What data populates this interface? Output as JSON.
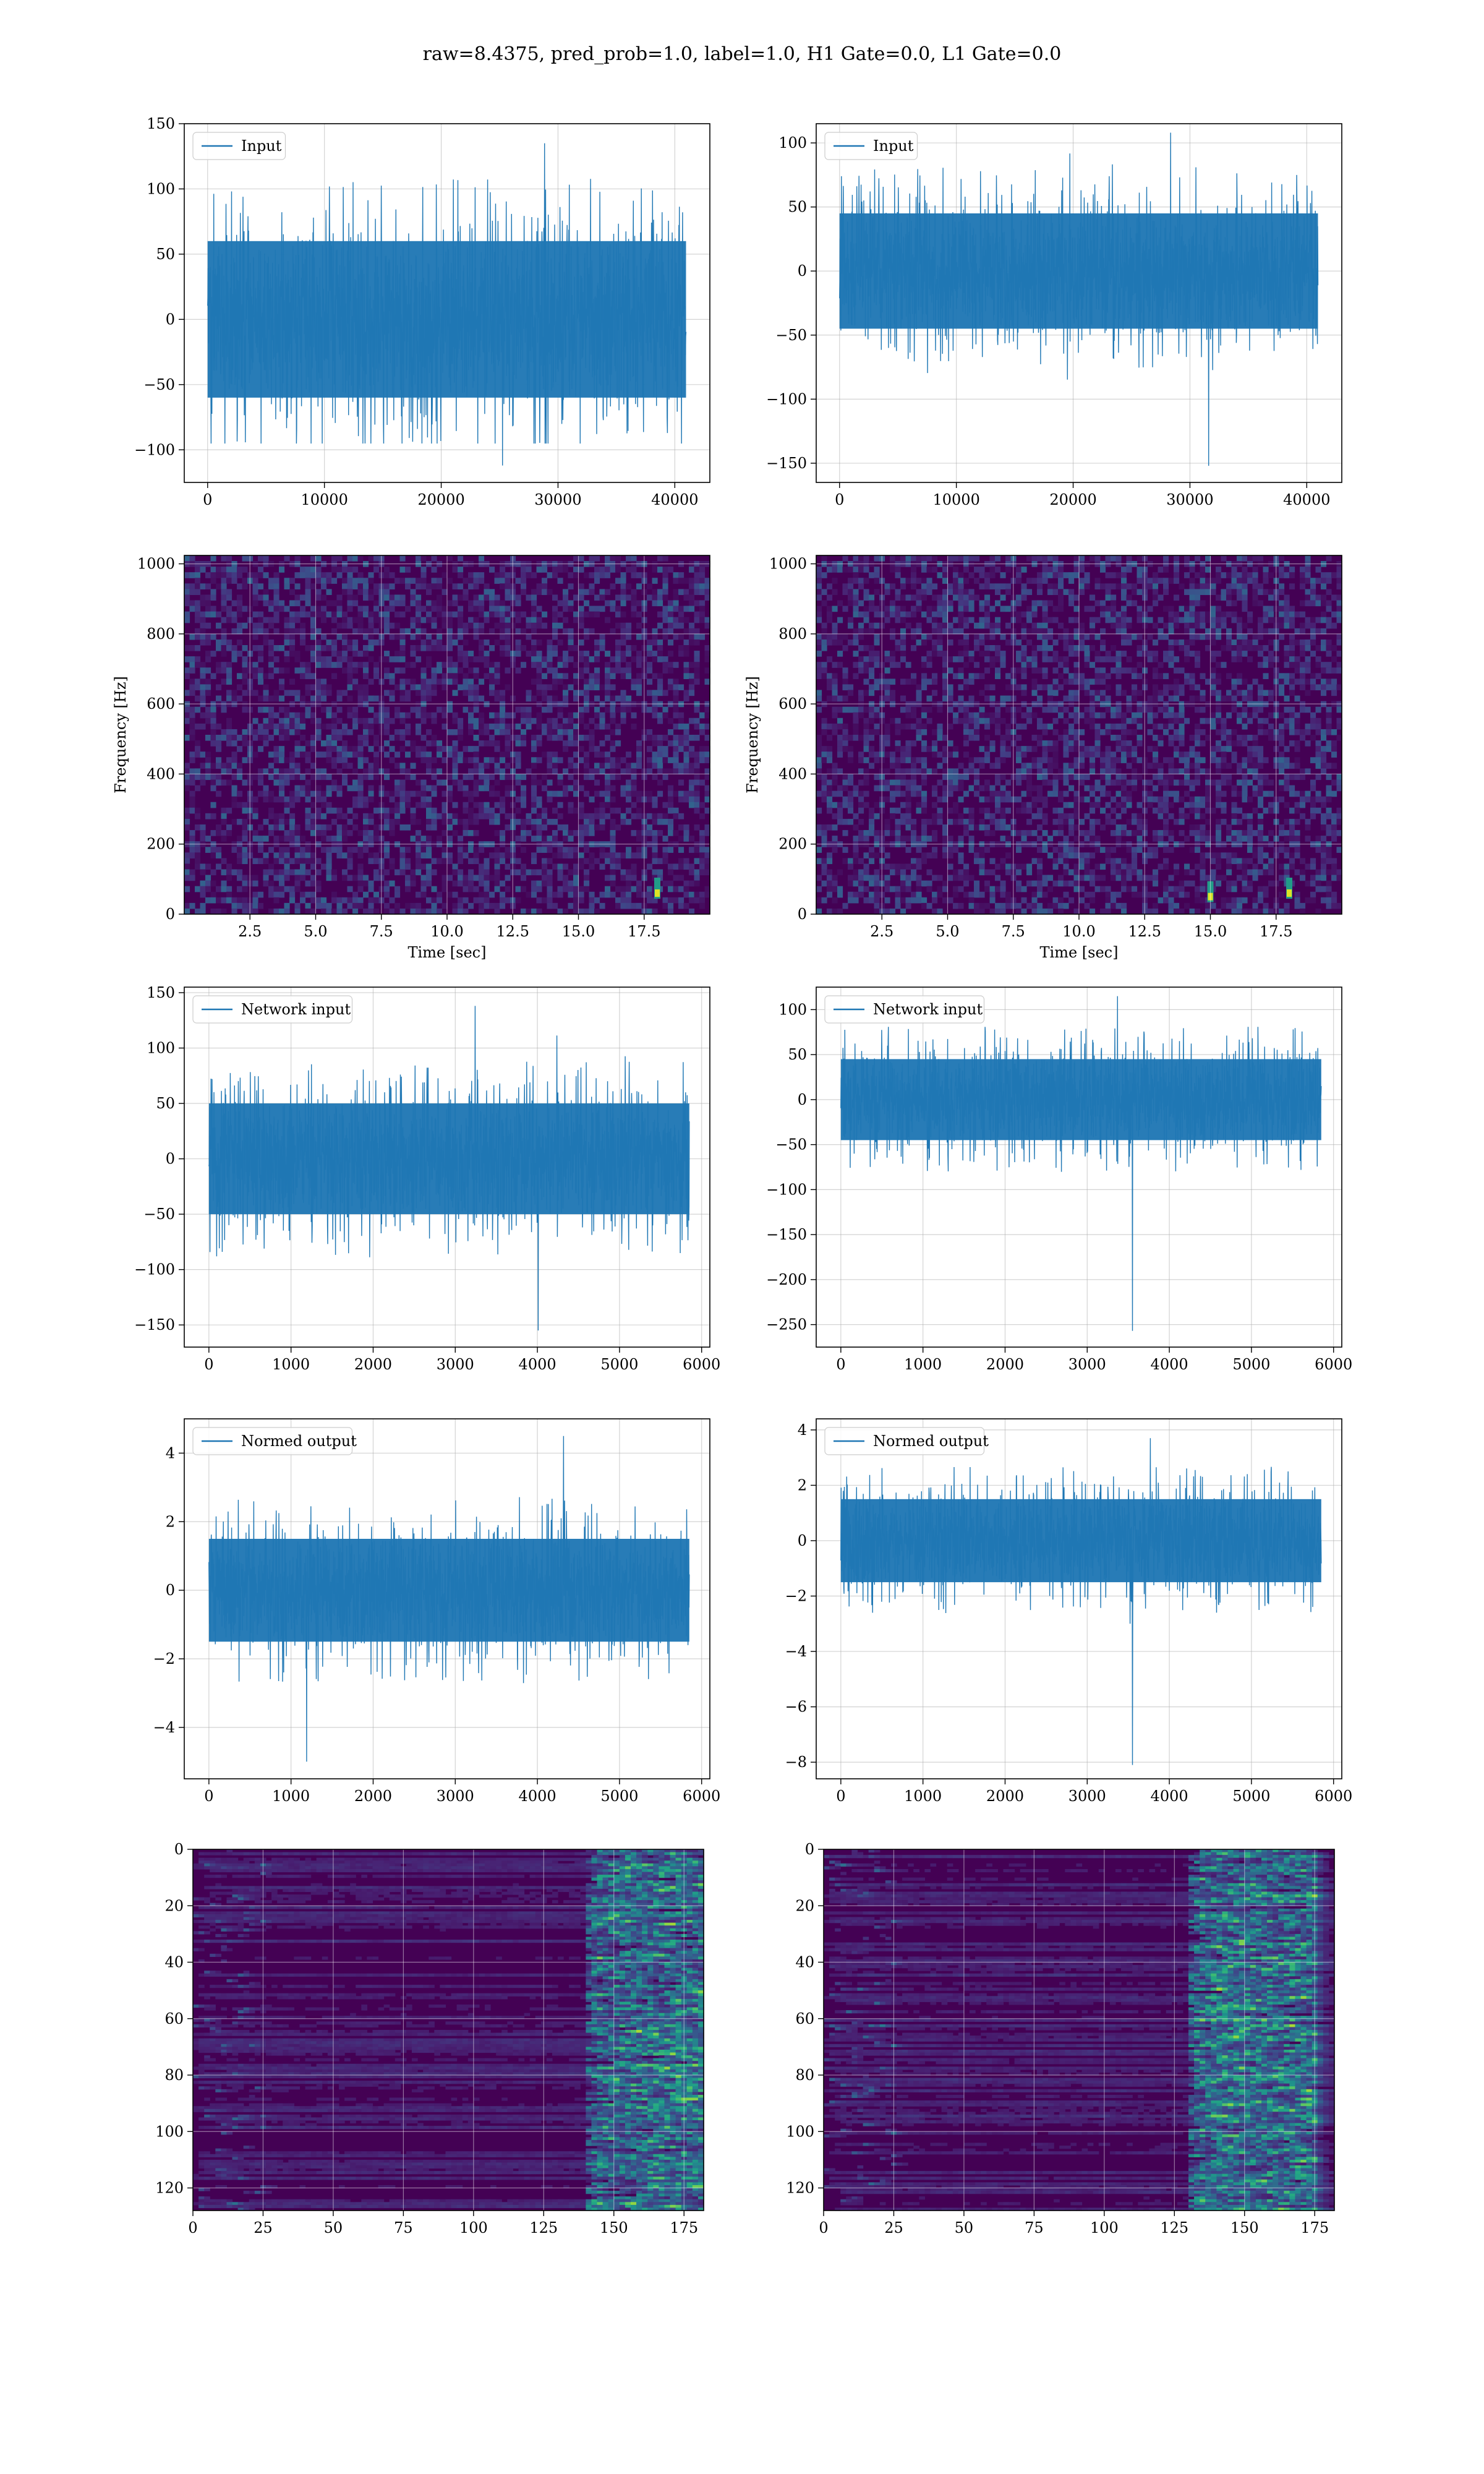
{
  "figure": {
    "title": "raw=8.4375, pred_prob=1.0, label=1.0, H1 Gate=0.0, L1 Gate=0.0"
  },
  "colors": {
    "line": "#1f77b4",
    "grid": "#b0b0b0",
    "viridis_low": "#440154",
    "viridis_high": "#fde725"
  },
  "chart_data": [
    {
      "type": "line",
      "panel": "top-left-input",
      "series_name": "Input",
      "xlim": [
        -2000,
        43000
      ],
      "ylim": [
        -125,
        150
      ],
      "xticks": [
        0,
        10000,
        20000,
        30000,
        40000
      ],
      "yticks": [
        -100,
        -50,
        0,
        50,
        100,
        150
      ],
      "x_range": [
        0,
        40960
      ],
      "core_amplitude": 60,
      "peak_max": 135,
      "peak_min": -112,
      "grid": true,
      "legend_position": "upper-left"
    },
    {
      "type": "line",
      "panel": "top-right-input",
      "series_name": "Input",
      "xlim": [
        -2000,
        43000
      ],
      "ylim": [
        -165,
        115
      ],
      "xticks": [
        0,
        10000,
        20000,
        30000,
        40000
      ],
      "yticks": [
        -150,
        -100,
        -50,
        0,
        50,
        100
      ],
      "x_range": [
        0,
        40960
      ],
      "core_amplitude": 45,
      "peak_max": 108,
      "peak_min": -152,
      "grid": true,
      "legend_position": "upper-left"
    },
    {
      "type": "heatmap",
      "panel": "spectrogram-left",
      "xlim": [
        0,
        20
      ],
      "ylim": [
        0,
        1024
      ],
      "xticks": [
        2.5,
        5.0,
        7.5,
        10.0,
        12.5,
        15.0,
        17.5
      ],
      "yticks": [
        0,
        200,
        400,
        600,
        800,
        1000
      ],
      "xlabel": "Time [sec]",
      "ylabel": "Frequency [Hz]",
      "bright_spots": [
        [
          18.0,
          60
        ]
      ],
      "grid": true
    },
    {
      "type": "heatmap",
      "panel": "spectrogram-right",
      "xlim": [
        0,
        20
      ],
      "ylim": [
        0,
        1024
      ],
      "xticks": [
        2.5,
        5.0,
        7.5,
        10.0,
        12.5,
        15.0,
        17.5
      ],
      "yticks": [
        0,
        200,
        400,
        600,
        800,
        1000
      ],
      "xlabel": "Time [sec]",
      "ylabel": "Frequency [Hz]",
      "bright_spots": [
        [
          15.0,
          50
        ],
        [
          18.0,
          60
        ]
      ],
      "grid": true
    },
    {
      "type": "line",
      "panel": "network-input-left",
      "series_name": "Network input",
      "xlim": [
        -300,
        6100
      ],
      "ylim": [
        -170,
        155
      ],
      "xticks": [
        0,
        1000,
        2000,
        3000,
        4000,
        5000,
        6000
      ],
      "yticks": [
        -150,
        -100,
        -50,
        0,
        50,
        100,
        150
      ],
      "x_range": [
        0,
        5850
      ],
      "core_amplitude": 50,
      "peak_max": 138,
      "peak_min": -155,
      "grid": true,
      "legend_position": "upper-left"
    },
    {
      "type": "line",
      "panel": "network-input-right",
      "series_name": "Network input",
      "xlim": [
        -300,
        6100
      ],
      "ylim": [
        -275,
        125
      ],
      "xticks": [
        0,
        1000,
        2000,
        3000,
        4000,
        5000,
        6000
      ],
      "yticks": [
        -250,
        -200,
        -150,
        -100,
        -50,
        0,
        50,
        100
      ],
      "x_range": [
        0,
        5850
      ],
      "core_amplitude": 45,
      "peak_max": 115,
      "peak_min": -257,
      "spike_x": 3550,
      "grid": true,
      "legend_position": "upper-left"
    },
    {
      "type": "line",
      "panel": "normed-output-left",
      "series_name": "Normed output",
      "xlim": [
        -300,
        6100
      ],
      "ylim": [
        -5.5,
        5.0
      ],
      "xticks": [
        0,
        1000,
        2000,
        3000,
        4000,
        5000,
        6000
      ],
      "yticks": [
        -4,
        -2,
        0,
        2,
        4
      ],
      "x_range": [
        0,
        5850
      ],
      "core_amplitude": 1.5,
      "peak_max": 4.5,
      "peak_min": -5.0,
      "grid": true,
      "legend_position": "upper-left"
    },
    {
      "type": "line",
      "panel": "normed-output-right",
      "series_name": "Normed output",
      "xlim": [
        -300,
        6100
      ],
      "ylim": [
        -8.6,
        4.4
      ],
      "xticks": [
        0,
        1000,
        2000,
        3000,
        4000,
        5000,
        6000
      ],
      "yticks": [
        -8,
        -6,
        -4,
        -2,
        0,
        2,
        4
      ],
      "x_range": [
        0,
        5850
      ],
      "core_amplitude": 1.5,
      "peak_max": 3.7,
      "peak_min": -8.1,
      "spike_x": 3550,
      "grid": true,
      "legend_position": "upper-left"
    },
    {
      "type": "heatmap",
      "panel": "feature-map-left",
      "xlim": [
        0,
        182
      ],
      "ylim": [
        128,
        0
      ],
      "xticks": [
        0,
        25,
        50,
        75,
        100,
        125,
        150,
        175
      ],
      "yticks": [
        0,
        20,
        40,
        60,
        80,
        100,
        120
      ],
      "active_region": [
        140,
        182
      ],
      "grid": true
    },
    {
      "type": "heatmap",
      "panel": "feature-map-right",
      "xlim": [
        0,
        182
      ],
      "ylim": [
        128,
        0
      ],
      "xticks": [
        0,
        25,
        50,
        75,
        100,
        125,
        150,
        175
      ],
      "yticks": [
        0,
        20,
        40,
        60,
        80,
        100,
        120
      ],
      "active_region": [
        130,
        175
      ],
      "grid": true
    }
  ]
}
